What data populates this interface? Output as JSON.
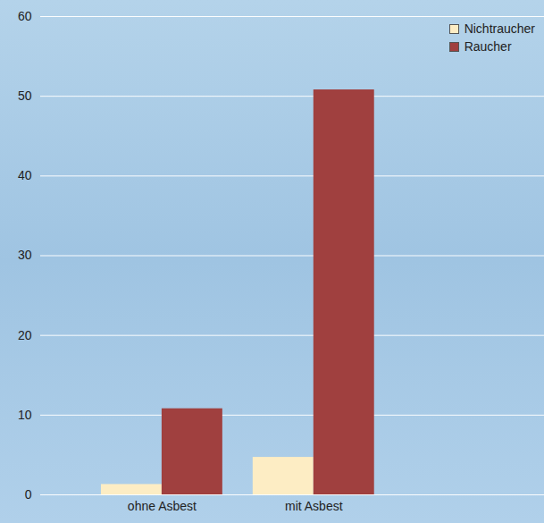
{
  "chart_data": {
    "type": "bar",
    "categories": [
      "ohne Asbest",
      "mit Asbest"
    ],
    "series": [
      {
        "name": "Nichtraucher",
        "color": "#fdedc4",
        "values": [
          1.3,
          4.7
        ]
      },
      {
        "name": "Raucher",
        "color": "#a0403f",
        "values": [
          10.8,
          50.8
        ]
      }
    ],
    "ylim": [
      0,
      60
    ],
    "yticks": [
      0,
      10,
      20,
      30,
      40,
      50,
      60
    ],
    "grid": true,
    "legend": "top-right"
  }
}
